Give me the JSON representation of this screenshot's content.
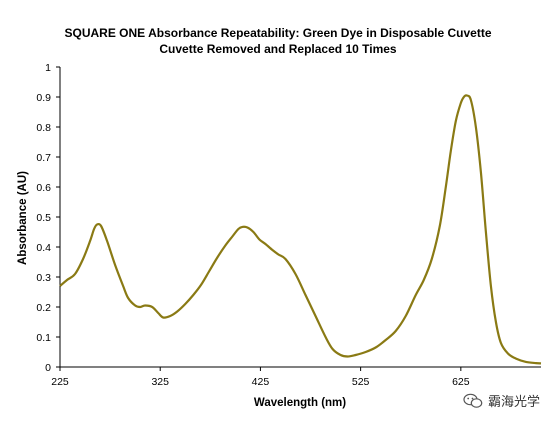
{
  "chart_data": {
    "type": "line",
    "title": "SQUARE ONE Absorbance Repeatability: Green Dye in Disposable Cuvette",
    "subtitle": "Cuvette Removed and Replaced 10 Times",
    "xlabel": "Wavelength (nm)",
    "ylabel": "Absorbance (AU)",
    "xlim": [
      225,
      705
    ],
    "ylim": [
      0,
      1
    ],
    "x_ticks": [
      "225",
      "325",
      "425",
      "525",
      "625"
    ],
    "y_ticks": [
      "0",
      "0.1",
      "0.2",
      "0.3",
      "0.4",
      "0.5",
      "0.6",
      "0.7",
      "0.8",
      "0.9",
      "1"
    ],
    "grid": false,
    "line_color": "#8a7a14",
    "series": [
      {
        "x": [
          225,
          232,
          240,
          248,
          255,
          259,
          262,
          266,
          272,
          280,
          288,
          293,
          300,
          305,
          310,
          317,
          323,
          328,
          335,
          342,
          350,
          358,
          366,
          374,
          382,
          390,
          397,
          403,
          407,
          412,
          418,
          424,
          430,
          437,
          443,
          450,
          460,
          470,
          480,
          490,
          497,
          505,
          512,
          520,
          530,
          540,
          550,
          560,
          570,
          580,
          588,
          596,
          604,
          610,
          615,
          620,
          625,
          628,
          631,
          635,
          640,
          645,
          650,
          655,
          660,
          665,
          672,
          680,
          690,
          700,
          705
        ],
        "y": [
          0.27,
          0.29,
          0.31,
          0.36,
          0.42,
          0.46,
          0.475,
          0.47,
          0.42,
          0.34,
          0.27,
          0.23,
          0.205,
          0.2,
          0.205,
          0.2,
          0.18,
          0.165,
          0.17,
          0.185,
          0.21,
          0.24,
          0.275,
          0.32,
          0.365,
          0.405,
          0.435,
          0.46,
          0.467,
          0.465,
          0.45,
          0.425,
          0.41,
          0.39,
          0.375,
          0.36,
          0.31,
          0.24,
          0.17,
          0.1,
          0.06,
          0.04,
          0.035,
          0.04,
          0.05,
          0.065,
          0.09,
          0.12,
          0.17,
          0.24,
          0.29,
          0.36,
          0.47,
          0.6,
          0.72,
          0.82,
          0.88,
          0.9,
          0.905,
          0.89,
          0.8,
          0.65,
          0.45,
          0.27,
          0.15,
          0.08,
          0.045,
          0.028,
          0.017,
          0.013,
          0.012
        ]
      }
    ]
  },
  "watermark": {
    "text": "霸海光学",
    "icon": "wechat-icon"
  }
}
